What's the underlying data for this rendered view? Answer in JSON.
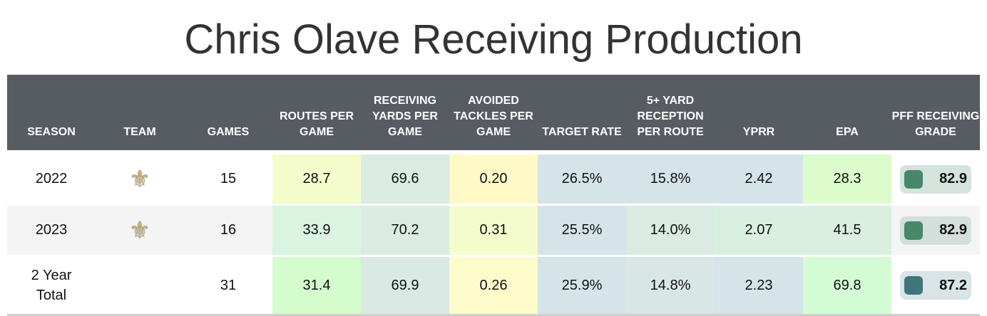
{
  "chart_data": {
    "type": "table",
    "title": "Chris Olave Receiving Production",
    "columns": [
      "SEASON",
      "TEAM",
      "GAMES",
      "ROUTES PER GAME",
      "RECEIVING YARDS PER GAME",
      "AVOIDED TACKLES PER GAME",
      "TARGET RATE",
      "5+ YARD RECEPTION PER ROUTE",
      "YPRR",
      "EPA",
      "PFF RECEIVING GRADE"
    ],
    "rows": [
      {
        "season": "2022",
        "team": "saints-fleur-de-lis-icon",
        "games": "15",
        "routes": "28.7",
        "yards": "69.6",
        "avoided": "0.20",
        "target": "26.5%",
        "five": "15.8%",
        "yprr": "2.42",
        "epa": "28.3",
        "grade": "82.9",
        "colors": [
          "#f5fccc",
          "#d9ebe3",
          "#fff9c8",
          "#d5e4e8",
          "#d5e4e8",
          "#d5e4e8",
          "#dcfccc"
        ],
        "grade_color": "#47876a",
        "grade_bg": "#d5e3dd"
      },
      {
        "season": "2023",
        "team": "saints-fleur-de-lis-icon",
        "games": "16",
        "routes": "33.9",
        "yards": "70.2",
        "avoided": "0.31",
        "target": "25.5%",
        "five": "14.0%",
        "yprr": "2.07",
        "epa": "41.5",
        "grade": "82.9",
        "colors": [
          "#d9f4e0",
          "#d9ebe3",
          "#f5fccc",
          "#d5e4e8",
          "#d9ebe3",
          "#d9f0e0",
          "#d9f0e0"
        ],
        "grade_color": "#47876a",
        "grade_bg": "#d3dfda"
      },
      {
        "season": "2 Year Total",
        "team": "",
        "games": "31",
        "routes": "31.4",
        "yards": "69.9",
        "avoided": "0.26",
        "target": "25.9%",
        "five": "14.8%",
        "yprr": "2.23",
        "epa": "69.8",
        "grade": "87.2",
        "colors": [
          "#d4fccc",
          "#d9e9e3",
          "#fffccc",
          "#d5e4e8",
          "#d9e6e6",
          "#d5e4e8",
          "#d4fcd4"
        ],
        "grade_color": "#3e767c",
        "grade_bg": "#d8e4e6"
      }
    ]
  }
}
